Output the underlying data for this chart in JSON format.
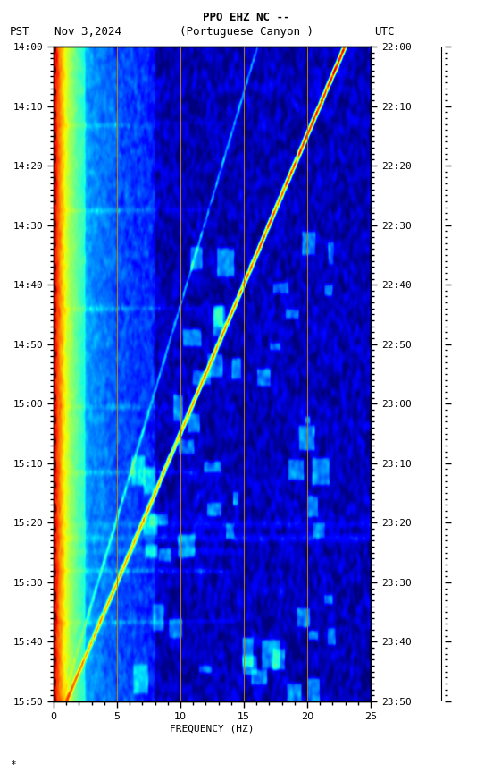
{
  "title_line1": "PPO EHZ NC --",
  "title_line2": "(Portuguese Canyon )",
  "left_label": "PST",
  "date_label": "Nov 3,2024",
  "right_label": "UTC",
  "xlabel": "FREQUENCY (HZ)",
  "freq_min": 0,
  "freq_max": 25,
  "pst_ticks": [
    "14:00",
    "14:10",
    "14:20",
    "14:30",
    "14:40",
    "14:50",
    "15:00",
    "15:10",
    "15:20",
    "15:30",
    "15:40",
    "15:50"
  ],
  "utc_ticks": [
    "22:00",
    "22:10",
    "22:20",
    "22:30",
    "22:40",
    "22:50",
    "23:00",
    "23:10",
    "23:20",
    "23:30",
    "23:40",
    "23:50"
  ],
  "n_time": 660,
  "n_freq": 500,
  "seed": 42,
  "colormap": "jet",
  "background": "white",
  "fig_width": 5.52,
  "fig_height": 8.64,
  "dpi": 100,
  "vgrid_color": "#b8860b",
  "vgrid_freqs": [
    5,
    10,
    15,
    20
  ]
}
